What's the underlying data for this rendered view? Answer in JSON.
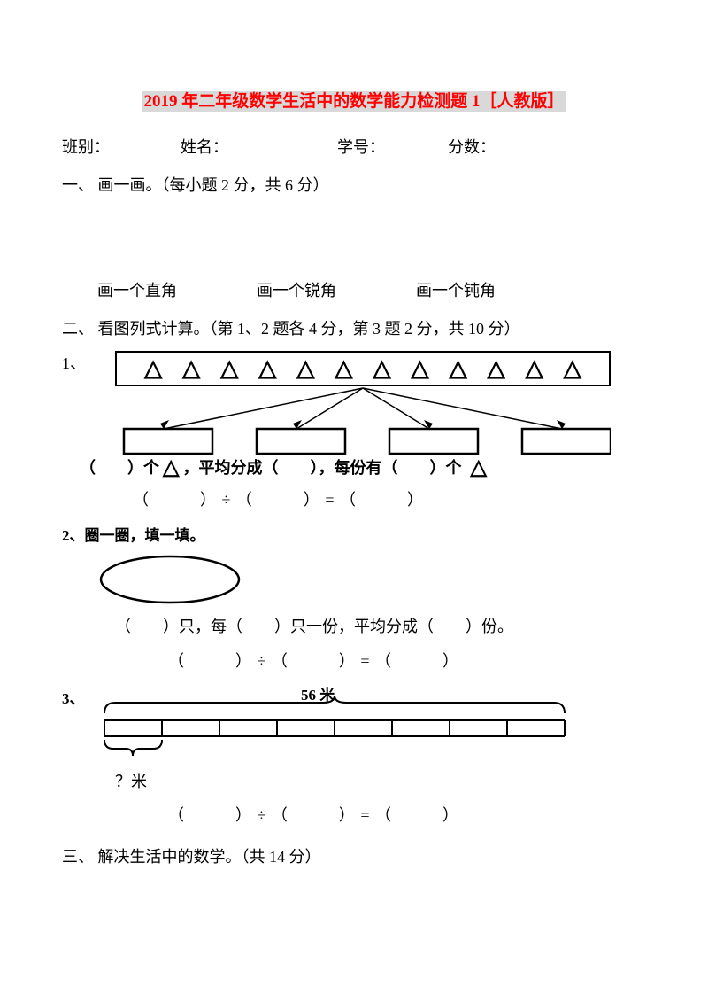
{
  "title": "2019 年二年级数学生活中的数学能力检测题 1［人教版］",
  "info": {
    "class_label": "班别：",
    "name_label": "姓名：",
    "id_label": "学号：",
    "score_label": "分数："
  },
  "section1": {
    "heading": "一、 画一画。（每小题 2 分，共 6 分）",
    "right_angle": "画一个直角",
    "acute_angle": "画一个锐角",
    "obtuse_angle": "画一个钝角"
  },
  "section2": {
    "heading": "二、 看图列式计算。（第 1、2 题各 4 分，第 3 题 2 分，共 10 分）",
    "q1_num": "1、",
    "triangle_count": 12,
    "q1_line": {
      "a": "（　　）个",
      "b": "，平均分成（　　），每份有（　　）个"
    },
    "eq": "（　　　）  ÷  （　　　） =  （　　　）",
    "q2_title": "2、圈一圈，填一填。",
    "q2_line": "（　　）只，每（　　）只一份，平均分成（　　）份。",
    "q3_num": "3、",
    "q3_label": "56 米",
    "q3_question": "？米"
  },
  "section3": {
    "heading": "三、 解决生活中的数学。（共 14 分）"
  },
  "colors": {
    "highlight_bg": "#d9d9d9",
    "highlight_fg": "#ff0000",
    "text": "#000000",
    "bg": "#ffffff"
  }
}
